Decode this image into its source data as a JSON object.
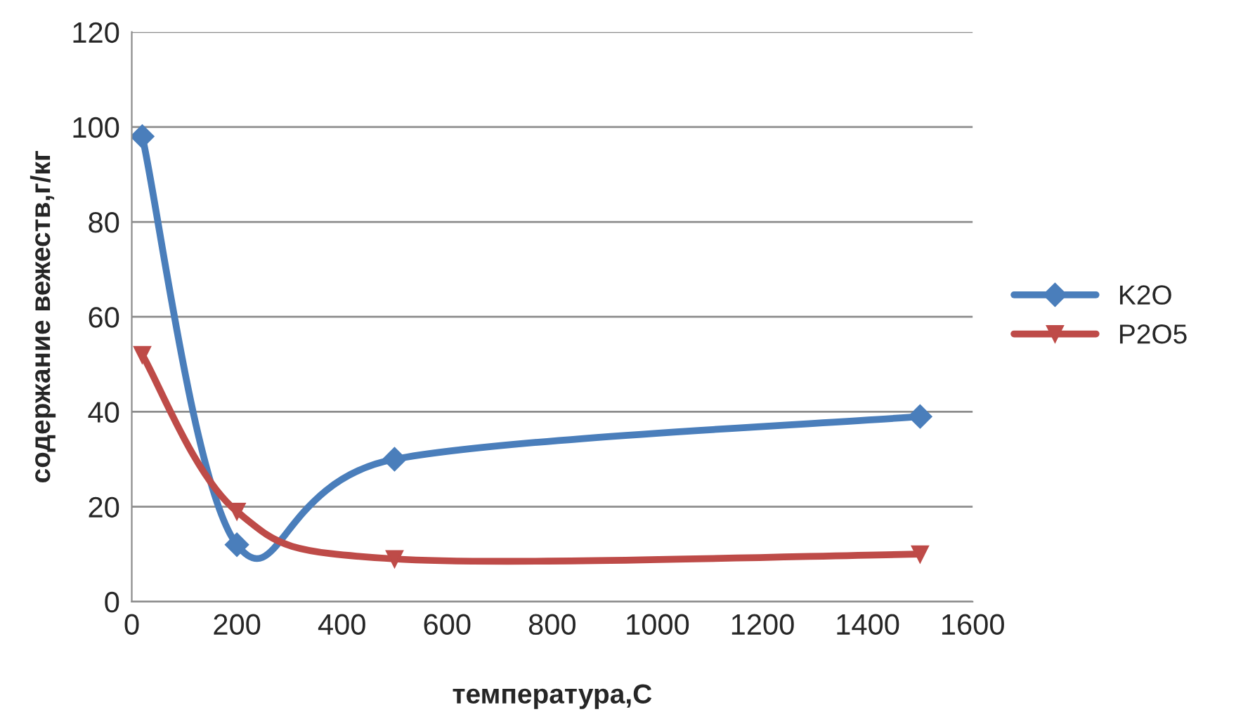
{
  "chart_data": {
    "type": "line",
    "xlabel": "температура,С",
    "ylabel": "содержание вежеств,г/кг",
    "xlim": [
      0,
      1600
    ],
    "xticks": [
      0,
      200,
      400,
      600,
      800,
      1000,
      1200,
      1400,
      1600
    ],
    "ylim": [
      0,
      120
    ],
    "yticks": [
      0,
      20,
      40,
      60,
      80,
      100,
      120
    ],
    "grid": "y",
    "legend": "right",
    "line_style": "solid",
    "series": [
      {
        "name": "K2O",
        "color": "#4a7ebb",
        "marker": "diamond",
        "x": [
          20,
          200,
          500,
          1500
        ],
        "values": [
          98,
          12,
          30,
          39
        ]
      },
      {
        "name": "P2O5",
        "color": "#be4b48",
        "marker": "triangle",
        "x": [
          20,
          200,
          500,
          1500
        ],
        "values": [
          52,
          19,
          9,
          10
        ]
      }
    ]
  }
}
